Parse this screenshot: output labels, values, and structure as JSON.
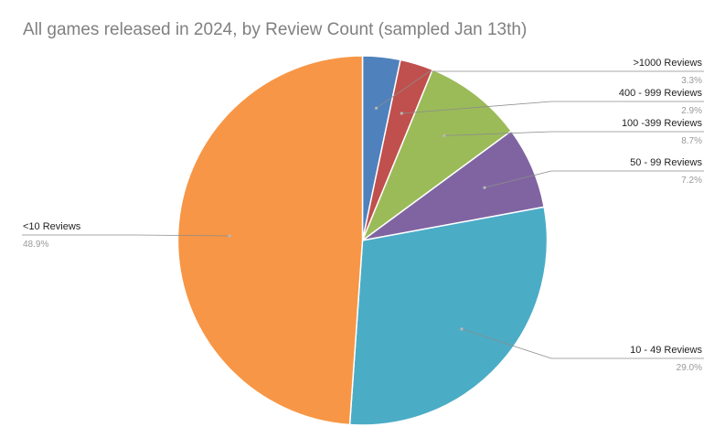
{
  "chart_data": {
    "type": "pie",
    "title": "All games released in 2024, by Review Count (sampled Jan 13th)",
    "slices": [
      {
        "label": ">1000 Reviews",
        "value": 3.3,
        "display": "3.3%",
        "color": "#4f81bd"
      },
      {
        "label": "400 - 999 Reviews",
        "value": 2.9,
        "display": "2.9%",
        "color": "#c0504d"
      },
      {
        "label": "100 -399 Reviews",
        "value": 8.7,
        "display": "8.7%",
        "color": "#9bbb59"
      },
      {
        "label": "50 - 99 Reviews",
        "value": 7.2,
        "display": "7.2%",
        "color": "#8064a2"
      },
      {
        "label": "10 - 49 Reviews",
        "value": 29.0,
        "display": "29.0%",
        "color": "#4bacc6"
      },
      {
        "label": "<10 Reviews",
        "value": 48.9,
        "display": "48.9%",
        "color": "#f79646"
      }
    ]
  }
}
